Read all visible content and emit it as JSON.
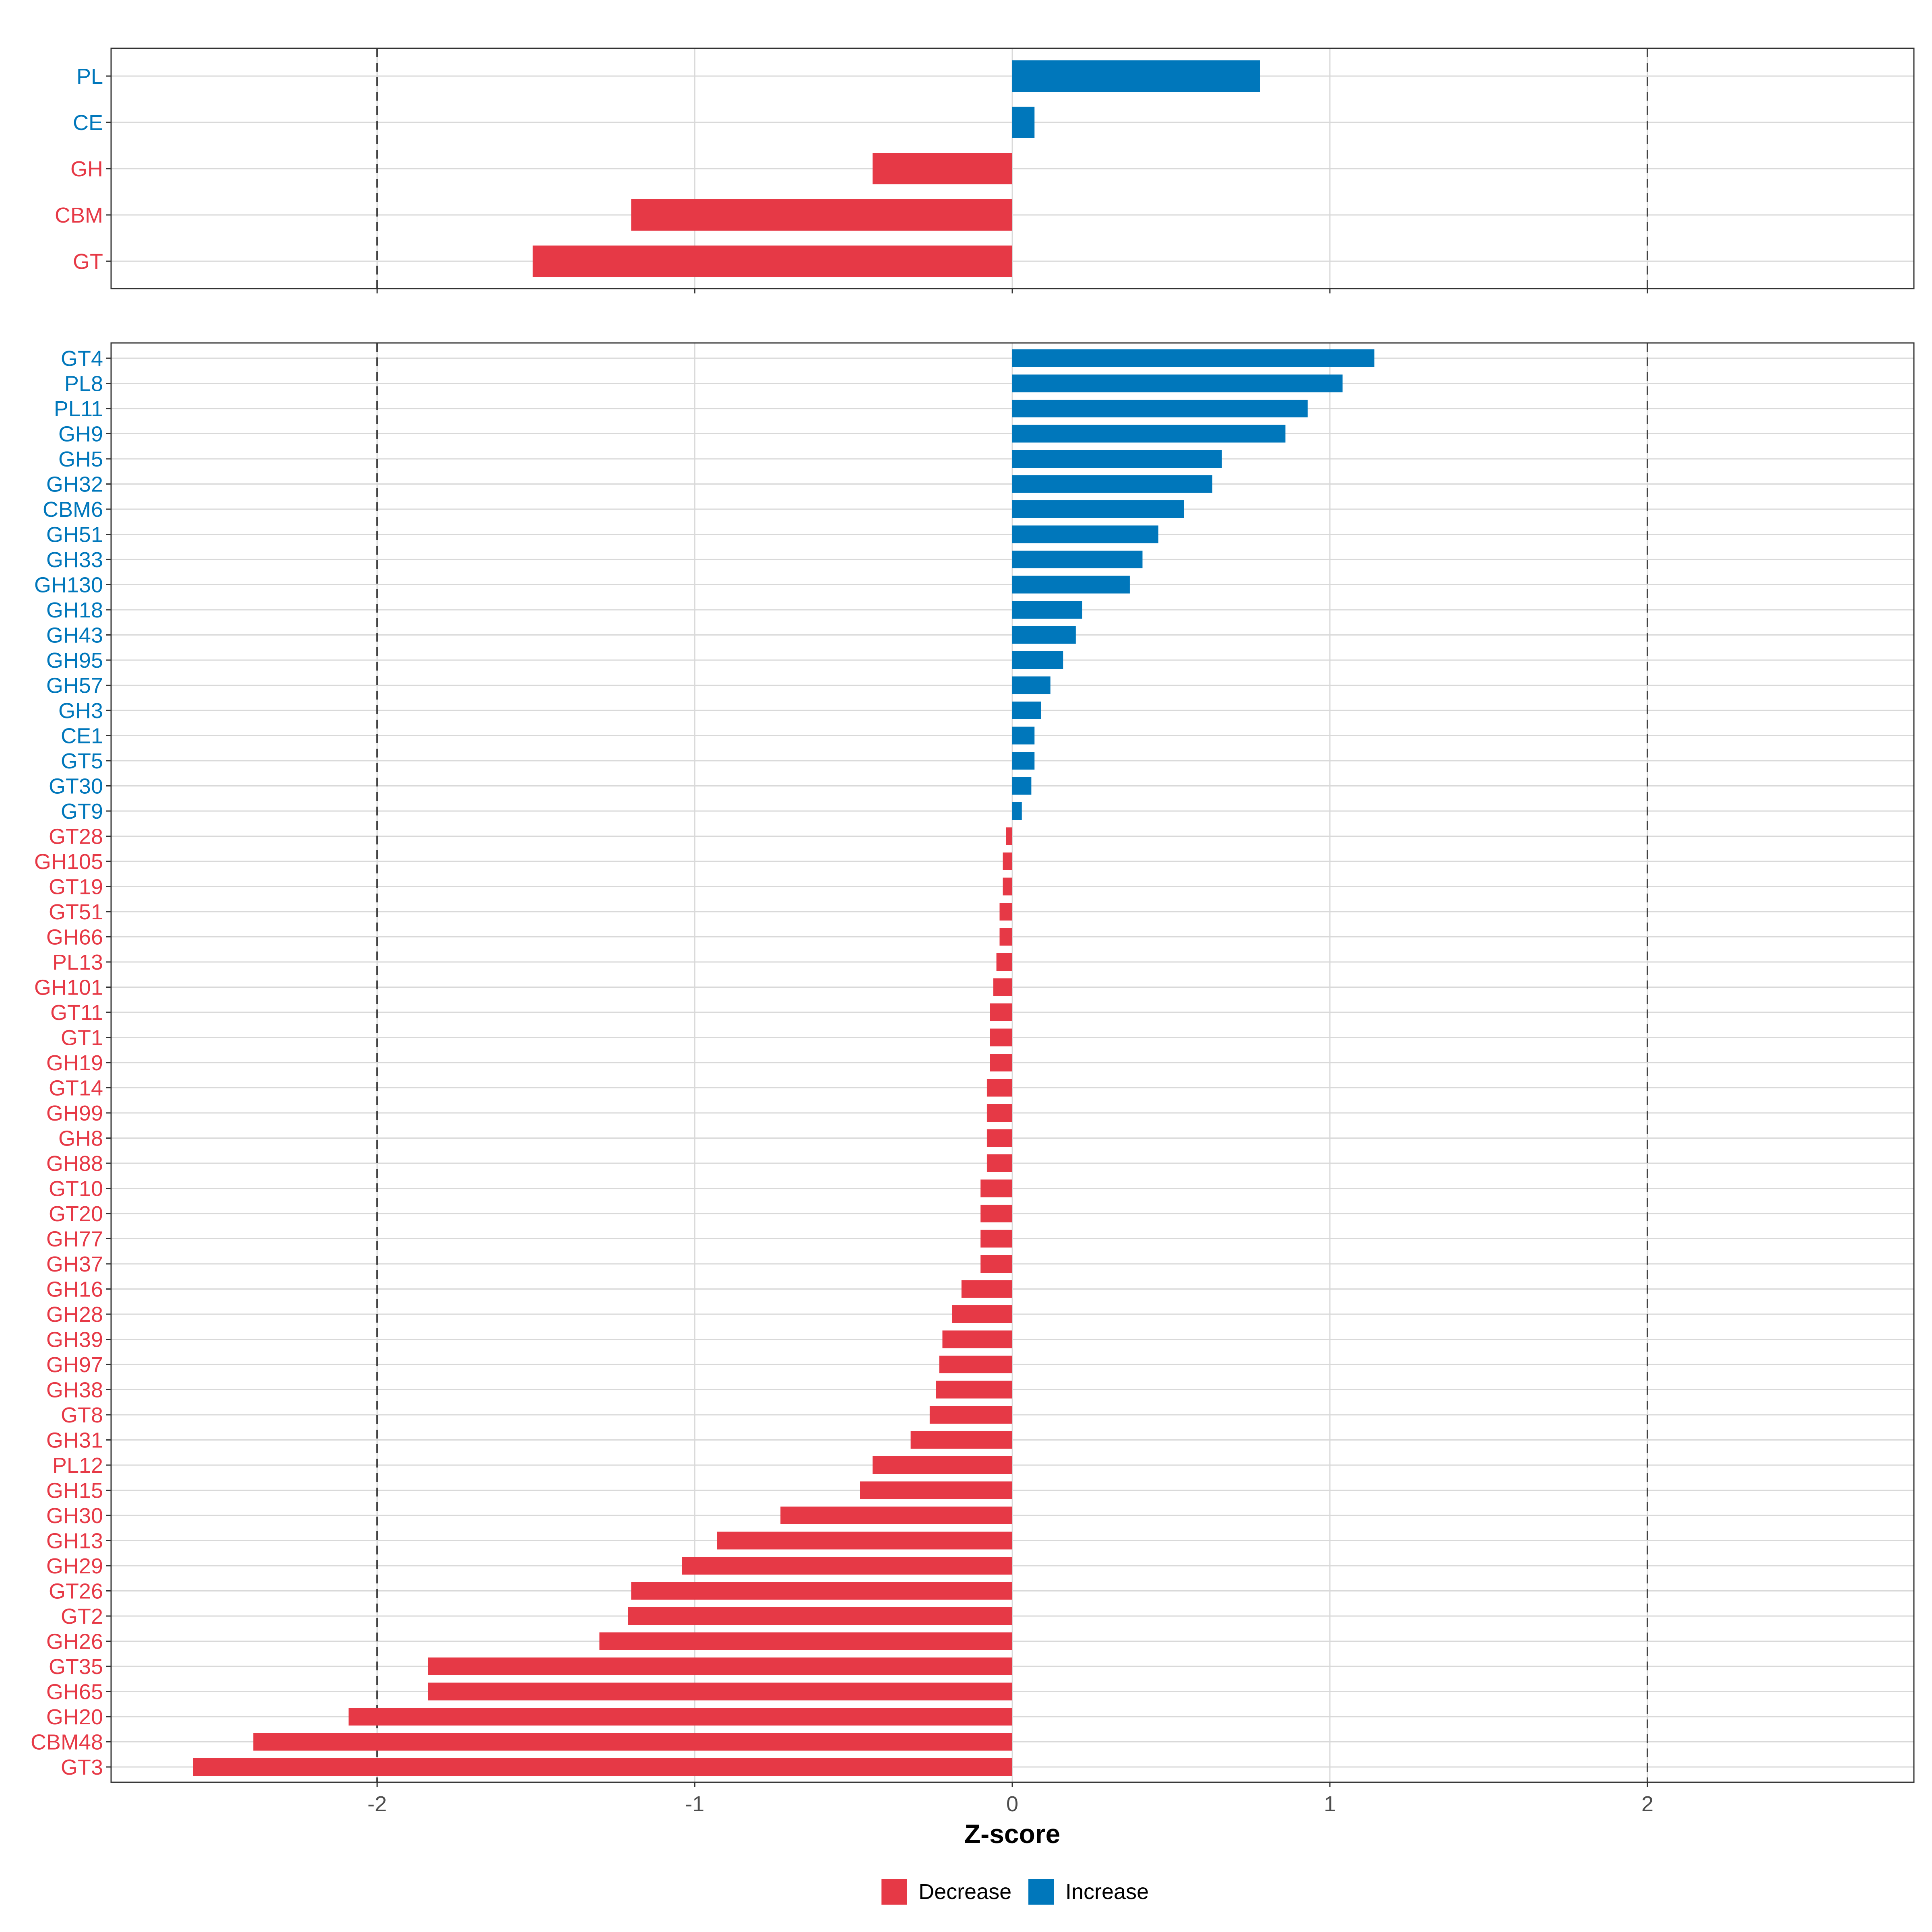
{
  "chart_data": [
    {
      "type": "bar",
      "orientation": "horizontal",
      "panel": "top",
      "categories": [
        "PL",
        "CE",
        "GH",
        "CBM",
        "GT"
      ],
      "values": [
        0.78,
        0.07,
        -0.44,
        -1.2,
        -1.51
      ],
      "xlim": [
        -2.84,
        2.84
      ],
      "reference_lines": [
        -2,
        2
      ],
      "grid": true
    },
    {
      "type": "bar",
      "orientation": "horizontal",
      "panel": "bottom",
      "categories": [
        "GT4",
        "PL8",
        "PL11",
        "GH9",
        "GH5",
        "GH32",
        "CBM6",
        "GH51",
        "GH33",
        "GH130",
        "GH18",
        "GH43",
        "GH95",
        "GH57",
        "GH3",
        "CE1",
        "GT5",
        "GT30",
        "GT9",
        "GT28",
        "GH105",
        "GT19",
        "GT51",
        "GH66",
        "PL13",
        "GH101",
        "GT11",
        "GT1",
        "GH19",
        "GT14",
        "GH99",
        "GH8",
        "GH88",
        "GT10",
        "GT20",
        "GH77",
        "GH37",
        "GH16",
        "GH28",
        "GH39",
        "GH97",
        "GH38",
        "GT8",
        "GH31",
        "PL12",
        "GH15",
        "GH30",
        "GH13",
        "GH29",
        "GT26",
        "GT2",
        "GH26",
        "GT35",
        "GH65",
        "GH20",
        "CBM48",
        "GT3"
      ],
      "values": [
        1.14,
        1.04,
        0.93,
        0.86,
        0.66,
        0.63,
        0.54,
        0.46,
        0.41,
        0.37,
        0.22,
        0.2,
        0.16,
        0.12,
        0.09,
        0.07,
        0.07,
        0.06,
        0.03,
        -0.02,
        -0.03,
        -0.03,
        -0.04,
        -0.04,
        -0.05,
        -0.06,
        -0.07,
        -0.07,
        -0.07,
        -0.08,
        -0.08,
        -0.08,
        -0.08,
        -0.1,
        -0.1,
        -0.1,
        -0.1,
        -0.16,
        -0.19,
        -0.22,
        -0.23,
        -0.24,
        -0.26,
        -0.32,
        -0.44,
        -0.48,
        -0.73,
        -0.93,
        -1.04,
        -1.2,
        -1.21,
        -1.3,
        -1.84,
        -1.84,
        -2.09,
        -2.39,
        -2.58
      ],
      "xlim": [
        -2.84,
        2.84
      ],
      "xticks": [
        "-2",
        "-1",
        "0",
        "1",
        "2"
      ],
      "reference_lines": [
        -2,
        2
      ],
      "xlabel": "Z-score",
      "grid": true
    }
  ],
  "legend": {
    "placement": "bottom",
    "items": [
      {
        "label": "Decrease",
        "color": "#e63946"
      },
      {
        "label": "Increase",
        "color": "#0077bb"
      }
    ]
  },
  "colors": {
    "decrease": "#e63946",
    "increase": "#0077bb",
    "grid": "#d9d9d9",
    "panel_border": "#333333",
    "reference_line": "#444444"
  }
}
